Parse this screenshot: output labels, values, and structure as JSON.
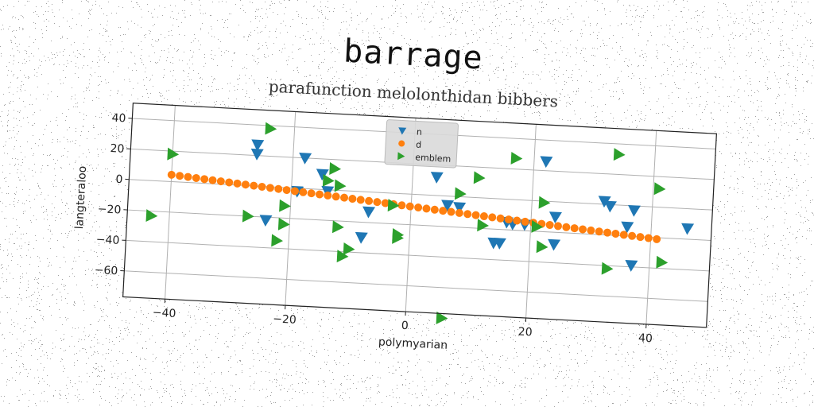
{
  "chart_data": {
    "type": "scatter",
    "title": "barrage",
    "subtitle": "parafunction melolonthidan bibbers",
    "xlabel": "polymyarian",
    "ylabel": "langteraloo",
    "xlim": [
      -47,
      50
    ],
    "ylim": [
      -77,
      50
    ],
    "xticks": [
      -40,
      -20,
      0,
      20,
      40
    ],
    "yticks": [
      -60,
      -40,
      -20,
      0,
      20,
      40
    ],
    "grid": true,
    "legend_position": "top-center",
    "rotation_deg": 3,
    "series": [
      {
        "name": "n",
        "marker": "triangle-down",
        "color": "#1f77b4",
        "points": [
          [
            -26,
            27
          ],
          [
            -26,
            21
          ],
          [
            -18,
            20
          ],
          [
            -15,
            10
          ],
          [
            -14,
            -1
          ],
          [
            -7,
            -13
          ],
          [
            -8,
            -30
          ],
          [
            -24,
            -22
          ],
          [
            -19,
            -2
          ],
          [
            4,
            12
          ],
          [
            6,
            -6
          ],
          [
            8,
            -7
          ],
          [
            14,
            -29
          ],
          [
            15,
            -29
          ],
          [
            17,
            -16
          ],
          [
            16,
            -15
          ],
          [
            19,
            -16
          ],
          [
            22,
            26
          ],
          [
            24,
            -10
          ],
          [
            24,
            -28
          ],
          [
            32,
            2
          ],
          [
            33,
            -1
          ],
          [
            36,
            -14
          ],
          [
            37,
            -3
          ],
          [
            37,
            -39
          ],
          [
            46,
            -13
          ]
        ]
      },
      {
        "name": "d",
        "marker": "circle",
        "color": "#ff7f0e",
        "x_start": -40,
        "x_end": 41,
        "y_start": 4.5,
        "y_end": -21,
        "count": 60
      },
      {
        "name": "emblem",
        "marker": "triangle-right",
        "color": "#2ca02c",
        "points": [
          [
            -40,
            18
          ],
          [
            -43,
            -23
          ],
          [
            -24,
            38
          ],
          [
            -27,
            -20
          ],
          [
            -21,
            -12
          ],
          [
            -21,
            -24
          ],
          [
            -22,
            -35
          ],
          [
            -13,
            14
          ],
          [
            -14,
            6
          ],
          [
            -12,
            3
          ],
          [
            -12,
            -24
          ],
          [
            -11,
            -43
          ],
          [
            -10,
            -38
          ],
          [
            -3,
            -8
          ],
          [
            -2,
            -27
          ],
          [
            -2,
            -29
          ],
          [
            8,
            2
          ],
          [
            11,
            13
          ],
          [
            12,
            -18
          ],
          [
            17,
            27
          ],
          [
            21,
            -17
          ],
          [
            22,
            -30
          ],
          [
            22,
            -1
          ],
          [
            33,
            -42
          ],
          [
            34,
            33
          ],
          [
            41,
            12
          ],
          [
            42,
            -36
          ],
          [
            6,
            -80
          ]
        ]
      }
    ]
  }
}
